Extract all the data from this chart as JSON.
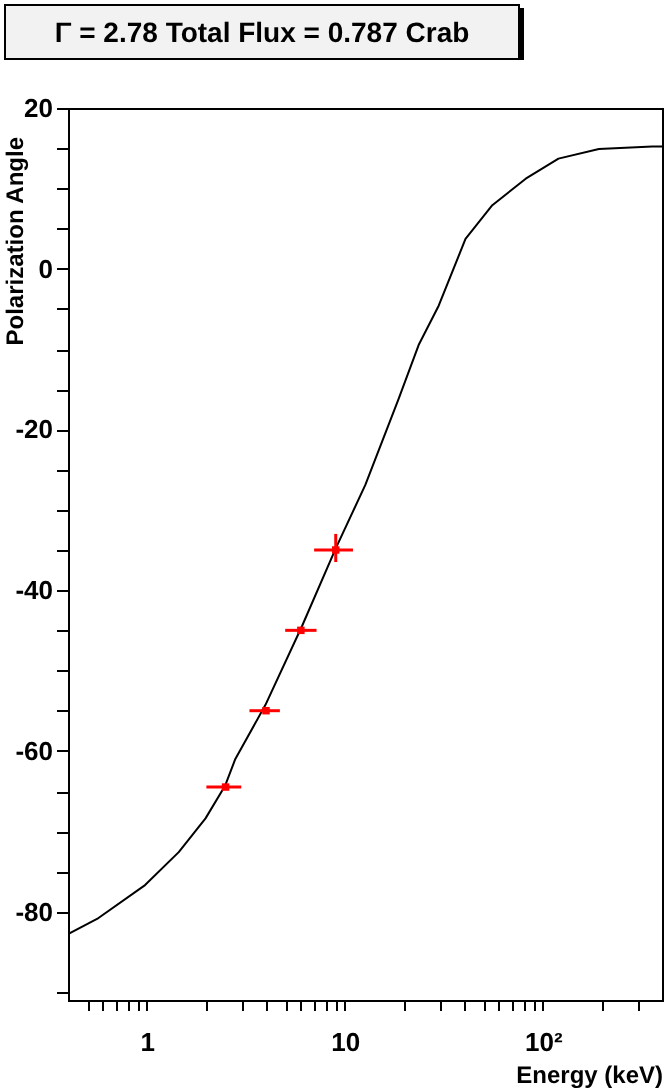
{
  "chart_data": {
    "type": "line",
    "title": "Γ = 2.78 Total Flux = 0.787 Crab",
    "xlabel": "Energy (keV)",
    "ylabel": "Polarization Angle",
    "log": "x",
    "grid": false,
    "xlim": [
      0.4,
      400
    ],
    "ylim": [
      -91,
      20
    ],
    "xticks": [
      {
        "value": 0.5,
        "label": null
      },
      {
        "value": 0.6,
        "label": null
      },
      {
        "value": 0.7,
        "label": null
      },
      {
        "value": 0.8,
        "label": null
      },
      {
        "value": 0.9,
        "label": null
      },
      1,
      {
        "value": 2,
        "label": null
      },
      {
        "value": 3,
        "label": null
      },
      {
        "value": 4,
        "label": null
      },
      {
        "value": 5,
        "label": null
      },
      {
        "value": 6,
        "label": null
      },
      {
        "value": 7,
        "label": null
      },
      {
        "value": 8,
        "label": null
      },
      {
        "value": 9,
        "label": null
      },
      10,
      {
        "value": 20,
        "label": null
      },
      {
        "value": 30,
        "label": null
      },
      {
        "value": 40,
        "label": null
      },
      {
        "value": 50,
        "label": null
      },
      {
        "value": 60,
        "label": null
      },
      {
        "value": 70,
        "label": null
      },
      {
        "value": 80,
        "label": null
      },
      {
        "value": 90,
        "label": null
      },
      {
        "value": 100,
        "label": "10²"
      },
      {
        "value": 200,
        "label": null
      },
      {
        "value": 300,
        "label": null
      }
    ],
    "yticks": [
      {
        "value": -90,
        "label": null
      },
      -80,
      {
        "value": -75,
        "label": null
      },
      {
        "value": -70,
        "label": null
      },
      {
        "value": -65,
        "label": null
      },
      -60,
      {
        "value": -55,
        "label": null
      },
      {
        "value": -50,
        "label": null
      },
      {
        "value": -45,
        "label": null
      },
      -40,
      {
        "value": -35,
        "label": null
      },
      {
        "value": -30,
        "label": null
      },
      {
        "value": -25,
        "label": null
      },
      -20,
      {
        "value": -15,
        "label": null
      },
      {
        "value": -10,
        "label": null
      },
      {
        "value": -5,
        "label": null
      },
      0,
      {
        "value": 5,
        "label": null
      },
      {
        "value": 10,
        "label": null
      },
      {
        "value": 15,
        "label": null
      },
      20
    ],
    "series": [
      {
        "type": "line",
        "color": "#000000",
        "x": [
          0.4,
          0.57,
          0.98,
          1.45,
          1.98,
          2.49,
          2.8,
          3.97,
          6.1,
          9,
          12.7,
          18.7,
          23.6,
          29.8,
          40.7,
          55.6,
          82,
          120,
          192,
          357,
          400
        ],
        "values": [
          -82.8,
          -80.8,
          -76.7,
          -72.6,
          -68.4,
          -64.3,
          -61,
          -54.3,
          -44.4,
          -34.8,
          -26.9,
          -16.2,
          -9.5,
          -4.6,
          3.7,
          7.9,
          11.2,
          13.7,
          14.9,
          15.2,
          15.2
        ]
      },
      {
        "type": "scatter",
        "color": "#ff0000",
        "marker": "square",
        "x": [
          2.5,
          4,
          6,
          9
        ],
        "values": [
          -64.5,
          -55,
          -45,
          -35
        ],
        "xerrors": [
          [
            2,
            3
          ],
          [
            3.3,
            4.7
          ],
          [
            5,
            7.2
          ],
          [
            7,
            11
          ]
        ],
        "errors": [
          null,
          null,
          null,
          [
            -36.5,
            -33
          ]
        ]
      }
    ]
  }
}
